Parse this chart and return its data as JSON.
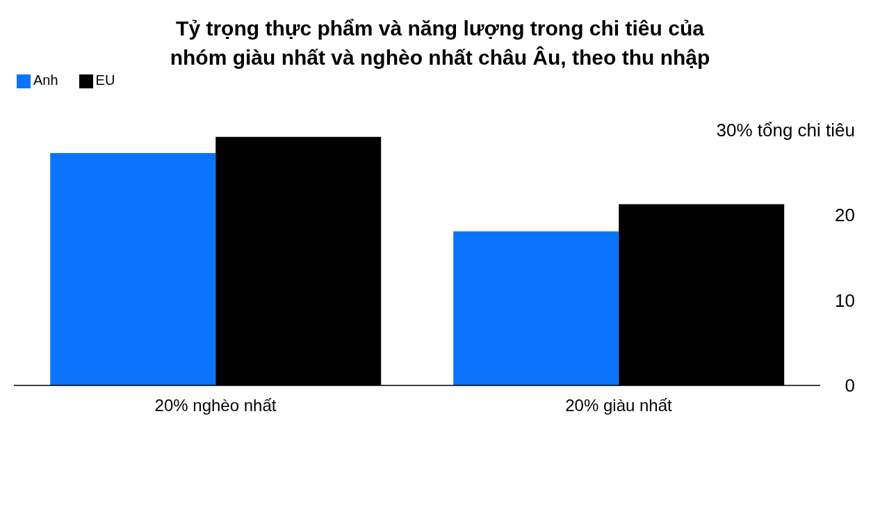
{
  "chart_data": {
    "type": "bar",
    "title": "Tỷ trọng thực phẩm và năng lượng trong chi tiêu của\nnhóm giàu nhất và nghèo nhất châu Âu, theo thu nhập",
    "categories": [
      "20% nghèo nhất",
      "20% giàu nhất"
    ],
    "series": [
      {
        "name": "Anh",
        "color": "#0a74ff",
        "values": [
          27.3,
          18.1
        ]
      },
      {
        "name": "EU",
        "color": "#000000",
        "values": [
          29.2,
          21.3
        ]
      }
    ],
    "ylim": [
      0,
      30
    ],
    "yticks": [
      0,
      10,
      20,
      {
        "value": 30,
        "label": "30% tổng chi tiêu"
      }
    ],
    "grid": false,
    "legend": "top left"
  }
}
